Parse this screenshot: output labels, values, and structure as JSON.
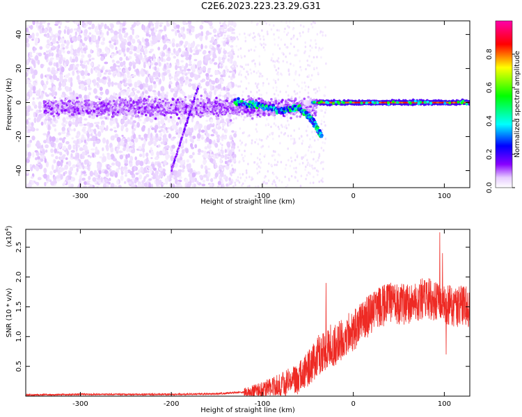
{
  "title": "C2E6.2023.223.23.29.G31",
  "chart_data": [
    {
      "type": "heatmap",
      "xlabel": "Height of straight line (km)",
      "ylabel": "Frequency (Hz)",
      "xlim": [
        -360,
        128
      ],
      "ylim": [
        -50,
        48
      ],
      "xticks": [
        -300,
        -200,
        -100,
        0,
        100
      ],
      "yticks": [
        -40,
        -20,
        0,
        20,
        40
      ],
      "colorbar": {
        "label": "Normalized spectral amplitude",
        "range": [
          0,
          1
        ],
        "ticks": [
          "0.0",
          "0.2",
          "0.4",
          "0.6",
          "0.8"
        ],
        "colors": [
          "#ffffff",
          "#e6ccff",
          "#8800ff",
          "#0000ff",
          "#00ffff",
          "#00ff00",
          "#ffff00",
          "#ff0000",
          "#ff00aa"
        ]
      },
      "features": {
        "strong_line": {
          "x_range": [
            -45,
            128
          ],
          "frequency": 0,
          "amplitude": 0.85
        },
        "drifting_trace": {
          "points": [
            [
              -130,
              0
            ],
            [
              -100,
              -2
            ],
            [
              -80,
              -5
            ],
            [
              -60,
              -3
            ],
            [
              -45,
              -10
            ],
            [
              -35,
              -20
            ]
          ]
        },
        "diagonal_streak": {
          "from": [
            -200,
            -40
          ],
          "to": [
            -170,
            10
          ]
        },
        "noise_band": {
          "x_range": [
            -340,
            -40
          ],
          "frequency_center": -3
        }
      }
    },
    {
      "type": "line",
      "xlabel": "Height of straight line (km)",
      "ylabel": "SNR (10 * v/v)",
      "yscale_label": "(x10",
      "yscale_exp": "4",
      "xlim": [
        -360,
        128
      ],
      "ylim": [
        0,
        2.8
      ],
      "xticks": [
        -300,
        -200,
        -100,
        0,
        100
      ],
      "yticks": [
        "0.5",
        "1.0",
        "1.5",
        "2.0",
        "2.5"
      ],
      "color": "#ee2a24",
      "envelope": [
        [
          -360,
          0.02
        ],
        [
          -300,
          0.03
        ],
        [
          -200,
          0.03
        ],
        [
          -150,
          0.04
        ],
        [
          -120,
          0.07
        ],
        [
          -100,
          0.1
        ],
        [
          -80,
          0.18
        ],
        [
          -60,
          0.3
        ],
        [
          -50,
          0.45
        ],
        [
          -40,
          0.65
        ],
        [
          -30,
          0.8
        ],
        [
          -25,
          0.75
        ],
        [
          -20,
          0.85
        ],
        [
          -10,
          1.0
        ],
        [
          0,
          1.1
        ],
        [
          10,
          1.25
        ],
        [
          20,
          1.4
        ],
        [
          30,
          1.5
        ],
        [
          40,
          1.55
        ],
        [
          50,
          1.55
        ],
        [
          60,
          1.55
        ],
        [
          70,
          1.6
        ],
        [
          80,
          1.65
        ],
        [
          90,
          1.6
        ],
        [
          100,
          1.55
        ],
        [
          110,
          1.5
        ],
        [
          128,
          1.5
        ]
      ],
      "peaks": [
        [
          -30,
          1.9
        ],
        [
          -25,
          1.2
        ],
        [
          95,
          2.75
        ],
        [
          98,
          2.4
        ],
        [
          102,
          0.7
        ]
      ]
    }
  ]
}
